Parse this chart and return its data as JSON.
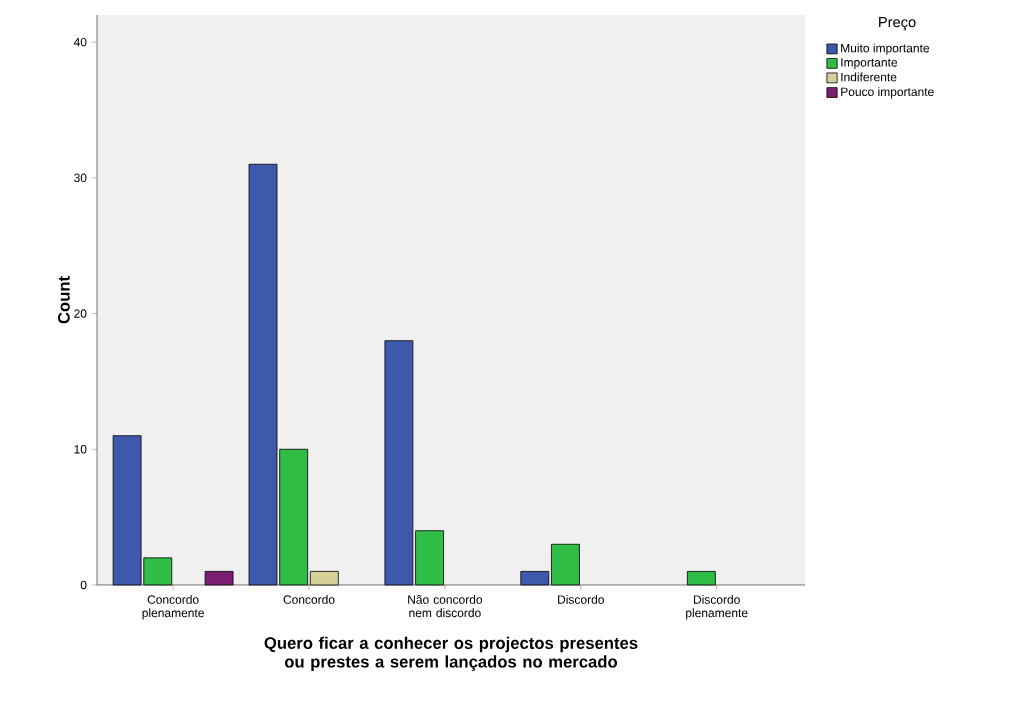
{
  "chart_data": {
    "type": "bar",
    "xlabel": "Quero ficar a conhecer os projectos presentes ou prestes a serem lançados no mercado",
    "ylabel": "Count",
    "legend_title": "Preço",
    "categories": [
      "Concordo plenamente",
      "Concordo",
      "Não concordo nem discordo",
      "Discordo",
      "Discordo plenamente"
    ],
    "series": [
      {
        "name": "Muito importante",
        "color": "#3e58ac",
        "values": [
          11,
          31,
          18,
          1,
          null
        ]
      },
      {
        "name": "Importante",
        "color": "#2fbd45",
        "values": [
          2,
          10,
          4,
          3,
          1
        ]
      },
      {
        "name": "Indiferente",
        "color": "#d6d19a",
        "values": [
          null,
          1,
          null,
          null,
          null
        ]
      },
      {
        "name": "Pouco importante",
        "color": "#7b1f73",
        "values": [
          1,
          null,
          null,
          null,
          null
        ]
      }
    ],
    "ylim": [
      0,
      42
    ],
    "yticks": [
      0,
      10,
      20,
      30,
      40
    ],
    "legend": "top right"
  }
}
